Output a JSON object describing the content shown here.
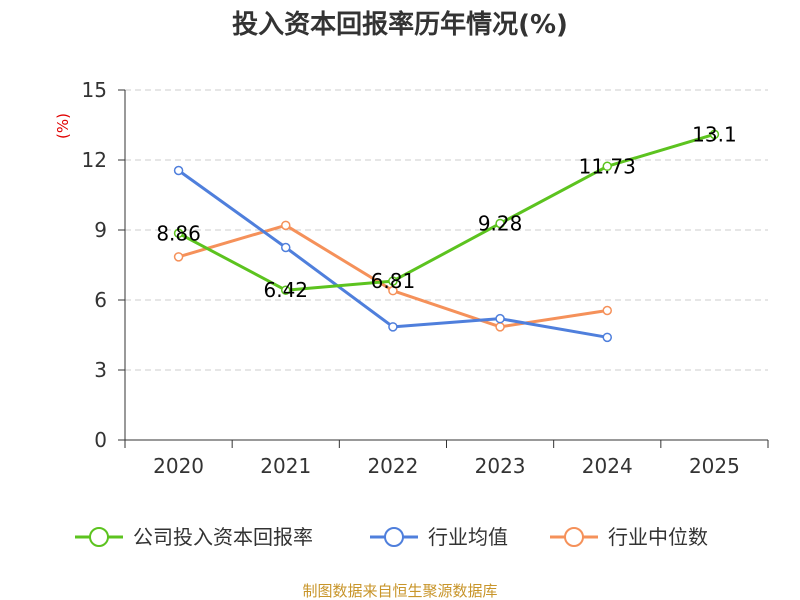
{
  "chart_data": {
    "type": "line",
    "title": "投入资本回报率历年情况(%)",
    "unit": "(%)",
    "categories": [
      "2020",
      "2021",
      "2022",
      "2023",
      "2024",
      "2025"
    ],
    "ylim": [
      0,
      15
    ],
    "yticks": [
      0,
      3,
      6,
      9,
      12,
      15
    ],
    "grid": true,
    "legend_position": "bottom",
    "series": [
      {
        "name": "公司投入资本回报率",
        "color": "#5cc31f",
        "values": [
          8.86,
          6.42,
          6.81,
          9.28,
          11.73,
          13.1
        ],
        "labels": [
          "8.86",
          "6.42",
          "6.81",
          "9.28",
          "11.73",
          "13.1"
        ]
      },
      {
        "name": "行业均值",
        "color": "#4f7fdc",
        "values": [
          11.55,
          8.25,
          4.85,
          5.2,
          4.4,
          null
        ],
        "labels": null
      },
      {
        "name": "行业中位数",
        "color": "#f5915a",
        "values": [
          7.85,
          9.2,
          6.4,
          4.85,
          5.55,
          null
        ],
        "labels": null
      }
    ]
  },
  "source": "制图数据来自恒生聚源数据库"
}
